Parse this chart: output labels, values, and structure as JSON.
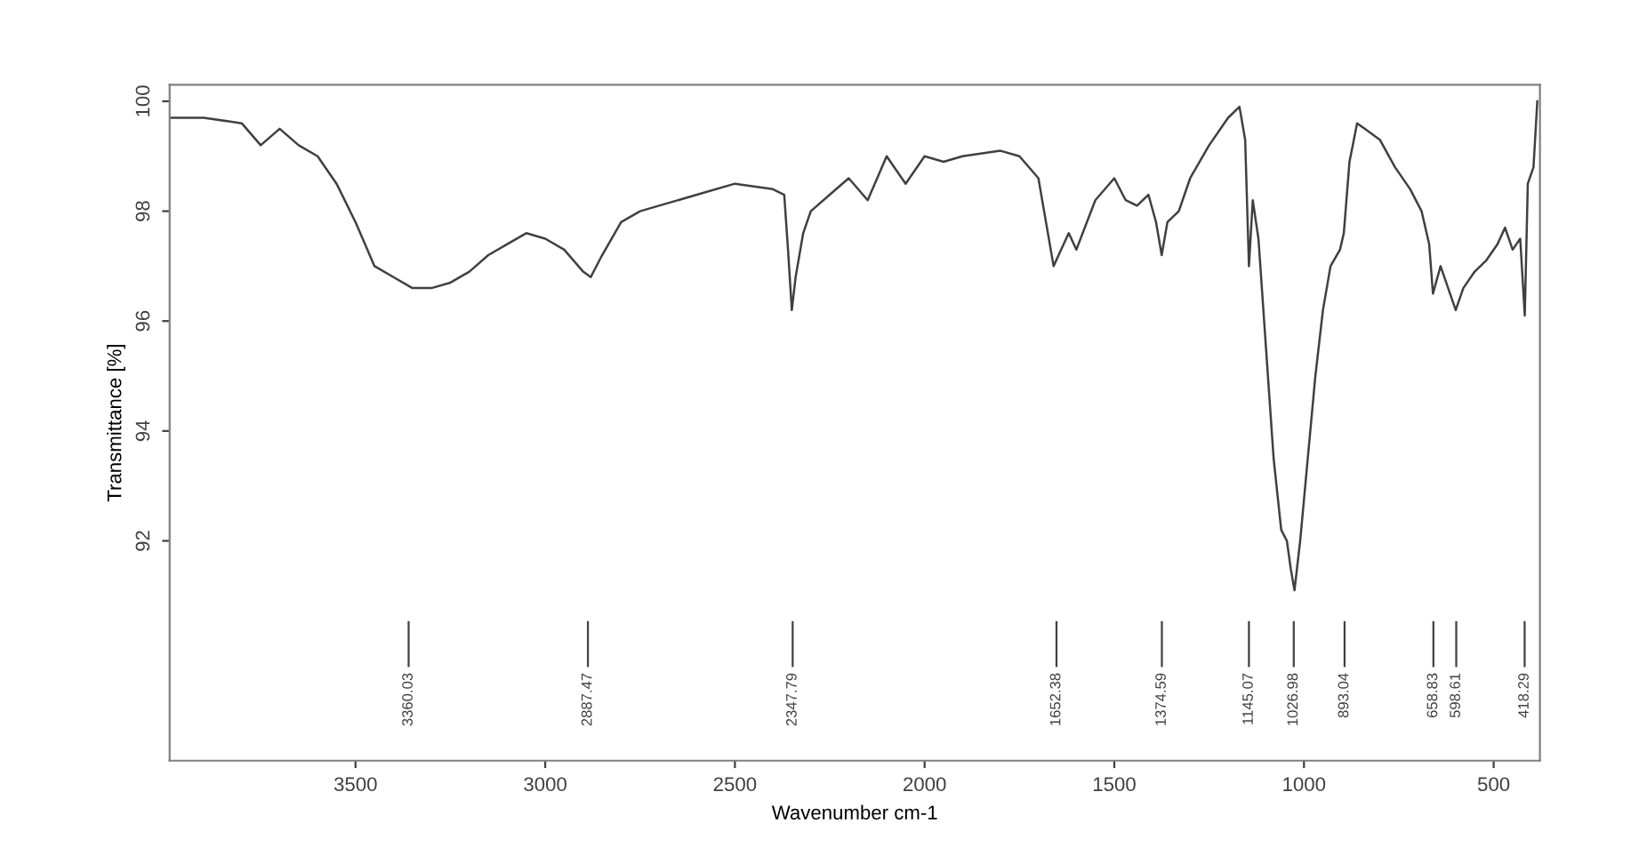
{
  "chart_data": {
    "type": "line",
    "xlabel": "Wavenumber cm-1",
    "ylabel": "Transmittance [%]",
    "xlim": [
      3990,
      378
    ],
    "ylim": [
      88.0,
      100.3
    ],
    "xticks": [
      3500,
      3000,
      2500,
      2000,
      1500,
      1000,
      500
    ],
    "yticks": [
      {
        "value": 92,
        "label": "92"
      },
      {
        "value": 94,
        "label": "94"
      },
      {
        "value": 96,
        "label": "96"
      },
      {
        "value": 98,
        "label": "98"
      },
      {
        "value": 100,
        "label": "100"
      }
    ],
    "grid": false,
    "legend": false,
    "series": [
      {
        "color": "#404040",
        "x": [
          3990,
          3900,
          3800,
          3750,
          3700,
          3650,
          3600,
          3550,
          3500,
          3450,
          3400,
          3350,
          3300,
          3250,
          3200,
          3150,
          3100,
          3050,
          3000,
          2950,
          2900,
          2880,
          2850,
          2800,
          2750,
          2700,
          2600,
          2500,
          2400,
          2370,
          2360,
          2350,
          2340,
          2320,
          2300,
          2250,
          2200,
          2150,
          2100,
          2050,
          2000,
          1950,
          1900,
          1800,
          1750,
          1700,
          1680,
          1660,
          1640,
          1620,
          1600,
          1550,
          1500,
          1470,
          1440,
          1410,
          1390,
          1375,
          1360,
          1330,
          1300,
          1250,
          1200,
          1170,
          1155,
          1145,
          1135,
          1120,
          1100,
          1080,
          1060,
          1045,
          1035,
          1025,
          1010,
          990,
          970,
          950,
          930,
          905,
          895,
          880,
          860,
          840,
          800,
          760,
          720,
          690,
          670,
          660,
          640,
          620,
          600,
          580,
          550,
          520,
          490,
          470,
          450,
          430,
          418,
          410,
          395,
          385
        ],
        "values": [
          99.7,
          99.7,
          99.6,
          99.2,
          99.5,
          99.2,
          99.0,
          98.5,
          97.8,
          97.0,
          96.8,
          96.6,
          96.6,
          96.7,
          96.9,
          97.2,
          97.4,
          97.6,
          97.5,
          97.3,
          96.9,
          96.8,
          97.2,
          97.8,
          98.0,
          98.1,
          98.3,
          98.5,
          98.4,
          98.3,
          97.3,
          96.2,
          96.8,
          97.6,
          98.0,
          98.3,
          98.6,
          98.2,
          99.0,
          98.5,
          99.0,
          98.9,
          99.0,
          99.1,
          99.0,
          98.6,
          97.8,
          97.0,
          97.3,
          97.6,
          97.3,
          98.2,
          98.6,
          98.2,
          98.1,
          98.3,
          97.8,
          97.2,
          97.8,
          98.0,
          98.6,
          99.2,
          99.7,
          99.9,
          99.3,
          97.0,
          98.2,
          97.5,
          95.5,
          93.5,
          92.2,
          92.0,
          91.5,
          91.1,
          92.0,
          93.5,
          95.0,
          96.2,
          97.0,
          97.3,
          97.6,
          98.9,
          99.6,
          99.5,
          99.3,
          98.8,
          98.4,
          98.0,
          97.4,
          96.5,
          97.0,
          96.6,
          96.2,
          96.6,
          96.9,
          97.1,
          97.4,
          97.7,
          97.3,
          97.5,
          96.1,
          98.5,
          98.8,
          100.0
        ]
      }
    ],
    "annotations": [
      {
        "text": "3360.03",
        "x": 3360.03
      },
      {
        "text": "2887.47",
        "x": 2887.47
      },
      {
        "text": "2347.79",
        "x": 2347.79
      },
      {
        "text": "1652.38",
        "x": 1652.38
      },
      {
        "text": "1374.59",
        "x": 1374.59
      },
      {
        "text": "1145.07",
        "x": 1145.07
      },
      {
        "text": "1026.98",
        "x": 1026.98
      },
      {
        "text": "893.04",
        "x": 893.04
      },
      {
        "text": "658.83",
        "x": 658.83
      },
      {
        "text": "598.61",
        "x": 598.61
      },
      {
        "text": "418.29",
        "x": 418.29
      }
    ]
  }
}
